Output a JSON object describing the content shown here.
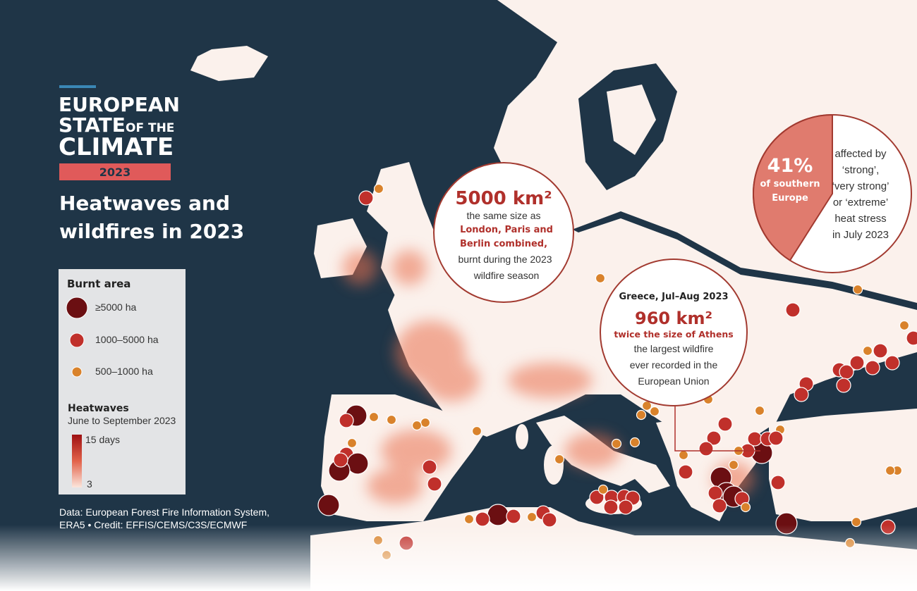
{
  "header": {
    "line1": "EUROPEAN",
    "line2a": "STATE",
    "line2b": "OF THE",
    "line3": "CLIMATE",
    "year": "2023"
  },
  "title": [
    "Heatwaves and",
    "wildfires in 2023"
  ],
  "legend": {
    "burnt_title": "Burnt area",
    "sizes": [
      "≥5000 ha",
      "1000–5000 ha",
      "500–1000 ha"
    ],
    "heat_title": "Heatwaves",
    "heat_subtitle": "June to September 2023",
    "heat_max": "15 days",
    "heat_min": "3"
  },
  "credit": [
    "Data: European Forest Fire Information System,",
    "ERA5 • Credit: EFFIS/CEMS/C3S/ECMWF"
  ],
  "callout_burnt": {
    "headline": "5000 km²",
    "lines": [
      "the same size as"
    ],
    "red_lines": [
      "London, Paris and",
      "Berlin combined,"
    ],
    "tail_lines": [
      "burnt during the 2023",
      "wildfire season"
    ]
  },
  "callout_greece": {
    "heading": "Greece, Jul–Aug 2023",
    "headline": "960 km²",
    "red_line": "twice the size of Athens",
    "lines": [
      "the largest wildfire",
      "ever recorded in the",
      "European Union"
    ]
  },
  "pie": {
    "value": 41,
    "label": "41%",
    "sublabel": [
      "of southern",
      "Europe"
    ],
    "text": [
      "affected by",
      "‘strong’,",
      "‘very strong’",
      "or ‘extreme’",
      "heat stress",
      "in July 2023"
    ]
  }
}
